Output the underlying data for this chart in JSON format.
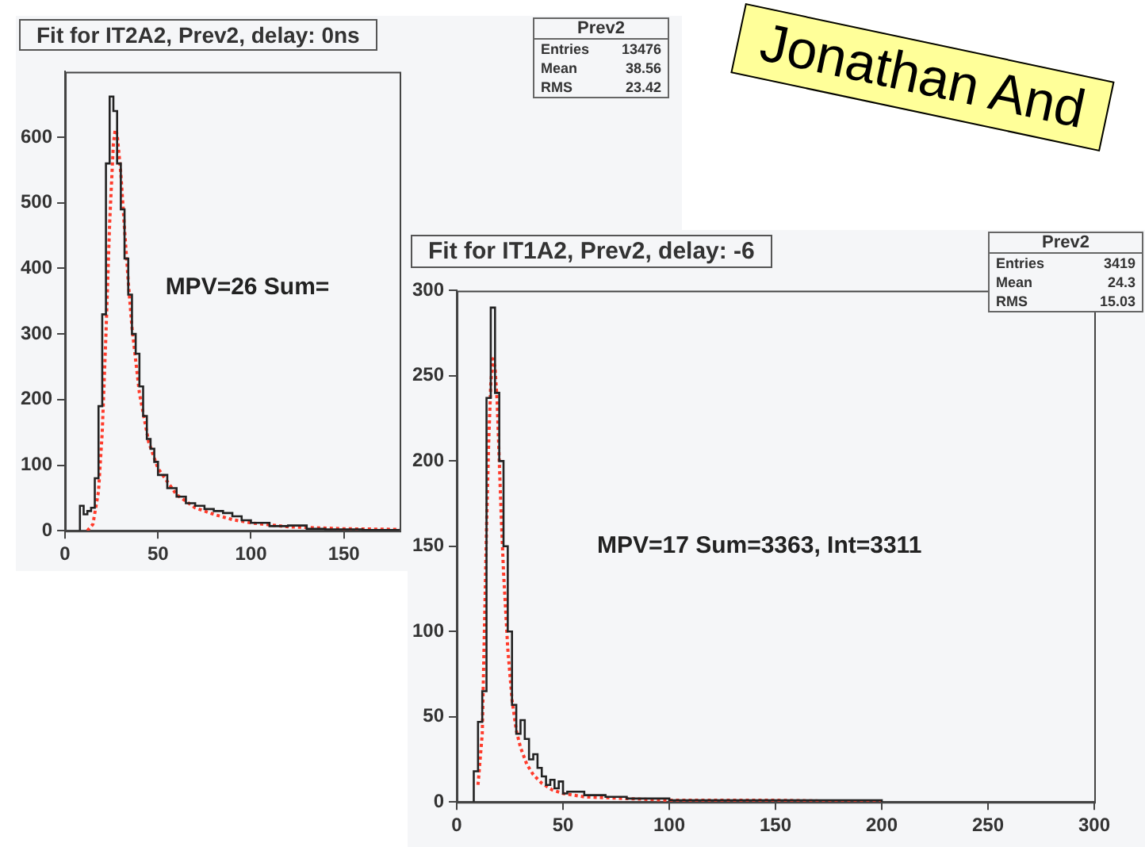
{
  "chart_data": [
    {
      "type": "histogram",
      "title": "Fit for IT2A2, Prev2, delay: 0ns",
      "xlim": [
        0,
        180
      ],
      "xticks": [
        0,
        50,
        100,
        150
      ],
      "ylim": [
        0,
        700
      ],
      "yticks": [
        0,
        100,
        200,
        300,
        400,
        500,
        600
      ],
      "grid": false,
      "series": [
        {
          "type": "histogram",
          "color": "#222222",
          "bins": [
            8,
            10,
            12,
            14,
            16,
            18,
            20,
            22,
            24,
            26,
            28,
            30,
            32,
            34,
            36,
            38,
            40,
            42,
            44,
            46,
            48,
            50,
            55,
            60,
            65,
            70,
            75,
            80,
            85,
            90,
            95,
            100,
            110,
            120,
            130,
            140,
            150,
            160,
            170,
            180
          ],
          "values": [
            38,
            25,
            30,
            35,
            80,
            190,
            330,
            560,
            662,
            640,
            560,
            490,
            415,
            360,
            300,
            270,
            220,
            175,
            140,
            125,
            105,
            85,
            65,
            52,
            42,
            38,
            33,
            30,
            27,
            22,
            16,
            12,
            7,
            8,
            3,
            2,
            2,
            1,
            1
          ]
        },
        {
          "type": "line",
          "color": "#ff3b2b",
          "line_style": "dotted",
          "marker": "none",
          "x": [
            12,
            15,
            18,
            20,
            22,
            24,
            26,
            27,
            28,
            30,
            32,
            34,
            36,
            40,
            45,
            50,
            60,
            70,
            80,
            90,
            100,
            120,
            150,
            180
          ],
          "values": [
            0,
            10,
            60,
            150,
            300,
            470,
            590,
            612,
            605,
            545,
            460,
            380,
            310,
            210,
            135,
            95,
            55,
            35,
            25,
            17,
            12,
            6,
            3,
            2
          ]
        }
      ],
      "annotations": [
        "MPV=26 Sum=",
        "Prev2",
        "Entries",
        "13476",
        "Mean",
        "38.56",
        "RMS",
        "23.42"
      ]
    },
    {
      "type": "histogram",
      "title": "Fit for IT1A2, Prev2, delay: -6",
      "xlim": [
        0,
        300
      ],
      "xticks": [
        0,
        50,
        100,
        150,
        200,
        250,
        300
      ],
      "ylim": [
        0,
        300
      ],
      "yticks": [
        0,
        50,
        100,
        150,
        200,
        250,
        300
      ],
      "grid": false,
      "series": [
        {
          "type": "histogram",
          "color": "#222222",
          "bins": [
            8,
            10,
            12,
            14,
            16,
            18,
            20,
            22,
            24,
            26,
            28,
            30,
            32,
            34,
            36,
            38,
            40,
            42,
            44,
            46,
            48,
            50,
            52,
            60,
            70,
            80,
            100,
            150,
            200
          ],
          "values": [
            18,
            47,
            65,
            237,
            290,
            240,
            200,
            150,
            100,
            57,
            40,
            48,
            37,
            25,
            28,
            20,
            15,
            10,
            13,
            8,
            12,
            5,
            6,
            4,
            3,
            2,
            1,
            1
          ]
        },
        {
          "type": "line",
          "color": "#ff3b2b",
          "line_style": "dotted",
          "marker": "none",
          "x": [
            10,
            12,
            13,
            14,
            15,
            16,
            17,
            18,
            19,
            20,
            21,
            22,
            24,
            26,
            28,
            30,
            33,
            36,
            40,
            45,
            50,
            60,
            80,
            100,
            150,
            200
          ],
          "values": [
            10,
            40,
            100,
            160,
            210,
            245,
            260,
            255,
            235,
            200,
            165,
            135,
            90,
            60,
            42,
            32,
            22,
            16,
            11,
            7,
            5,
            3,
            2,
            1,
            1,
            0
          ]
        }
      ],
      "annotations": [
        "MPV=17 Sum=3363, Int=3311",
        "Prev2",
        "Entries",
        "3419",
        "Mean",
        "24.3",
        "RMS",
        "15.03"
      ]
    },
    {
      "type": "other",
      "annotations": [
        "Jonathan And"
      ]
    }
  ]
}
